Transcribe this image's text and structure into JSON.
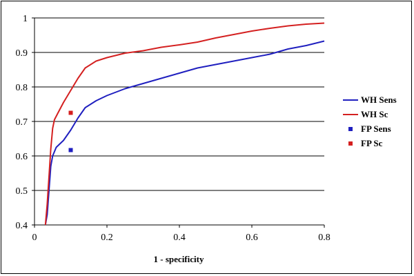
{
  "chart_data": {
    "type": "line",
    "title": "",
    "xlabel": "1 - specificity",
    "ylabel": "",
    "xlim": [
      0,
      0.8
    ],
    "ylim": [
      0.4,
      1
    ],
    "x_ticks": [
      "0",
      "0.2",
      "0.4",
      "0.6",
      "0.8"
    ],
    "y_ticks": [
      "0.4",
      "0.5",
      "0.6",
      "0.7",
      "0.8",
      "0.9",
      "1"
    ],
    "grid": "horizontal",
    "legend_position": "right",
    "series": [
      {
        "name": "WH Sens",
        "kind": "line",
        "color": "#1f1fbf",
        "points": [
          [
            0.03,
            0.4
          ],
          [
            0.035,
            0.43
          ],
          [
            0.04,
            0.5
          ],
          [
            0.045,
            0.57
          ],
          [
            0.05,
            0.6
          ],
          [
            0.06,
            0.625
          ],
          [
            0.08,
            0.645
          ],
          [
            0.1,
            0.675
          ],
          [
            0.12,
            0.71
          ],
          [
            0.14,
            0.74
          ],
          [
            0.17,
            0.76
          ],
          [
            0.2,
            0.775
          ],
          [
            0.25,
            0.795
          ],
          [
            0.3,
            0.81
          ],
          [
            0.35,
            0.825
          ],
          [
            0.4,
            0.84
          ],
          [
            0.45,
            0.855
          ],
          [
            0.5,
            0.865
          ],
          [
            0.55,
            0.875
          ],
          [
            0.6,
            0.885
          ],
          [
            0.65,
            0.895
          ],
          [
            0.7,
            0.91
          ],
          [
            0.75,
            0.92
          ],
          [
            0.8,
            0.933
          ]
        ]
      },
      {
        "name": "WH Sc",
        "kind": "line",
        "color": "#d42020",
        "points": [
          [
            0.03,
            0.4
          ],
          [
            0.035,
            0.46
          ],
          [
            0.04,
            0.54
          ],
          [
            0.045,
            0.62
          ],
          [
            0.05,
            0.68
          ],
          [
            0.055,
            0.705
          ],
          [
            0.065,
            0.725
          ],
          [
            0.08,
            0.755
          ],
          [
            0.1,
            0.79
          ],
          [
            0.12,
            0.825
          ],
          [
            0.14,
            0.855
          ],
          [
            0.17,
            0.875
          ],
          [
            0.2,
            0.885
          ],
          [
            0.25,
            0.898
          ],
          [
            0.3,
            0.905
          ],
          [
            0.35,
            0.915
          ],
          [
            0.4,
            0.922
          ],
          [
            0.45,
            0.93
          ],
          [
            0.5,
            0.942
          ],
          [
            0.55,
            0.952
          ],
          [
            0.6,
            0.962
          ],
          [
            0.65,
            0.97
          ],
          [
            0.7,
            0.977
          ],
          [
            0.75,
            0.982
          ],
          [
            0.8,
            0.985
          ]
        ]
      },
      {
        "name": "FP Sens",
        "kind": "marker",
        "color": "#1f1fbf",
        "points": [
          [
            0.1,
            0.617
          ]
        ]
      },
      {
        "name": "FP Sc",
        "kind": "marker",
        "color": "#d42020",
        "points": [
          [
            0.1,
            0.725
          ]
        ]
      }
    ]
  }
}
